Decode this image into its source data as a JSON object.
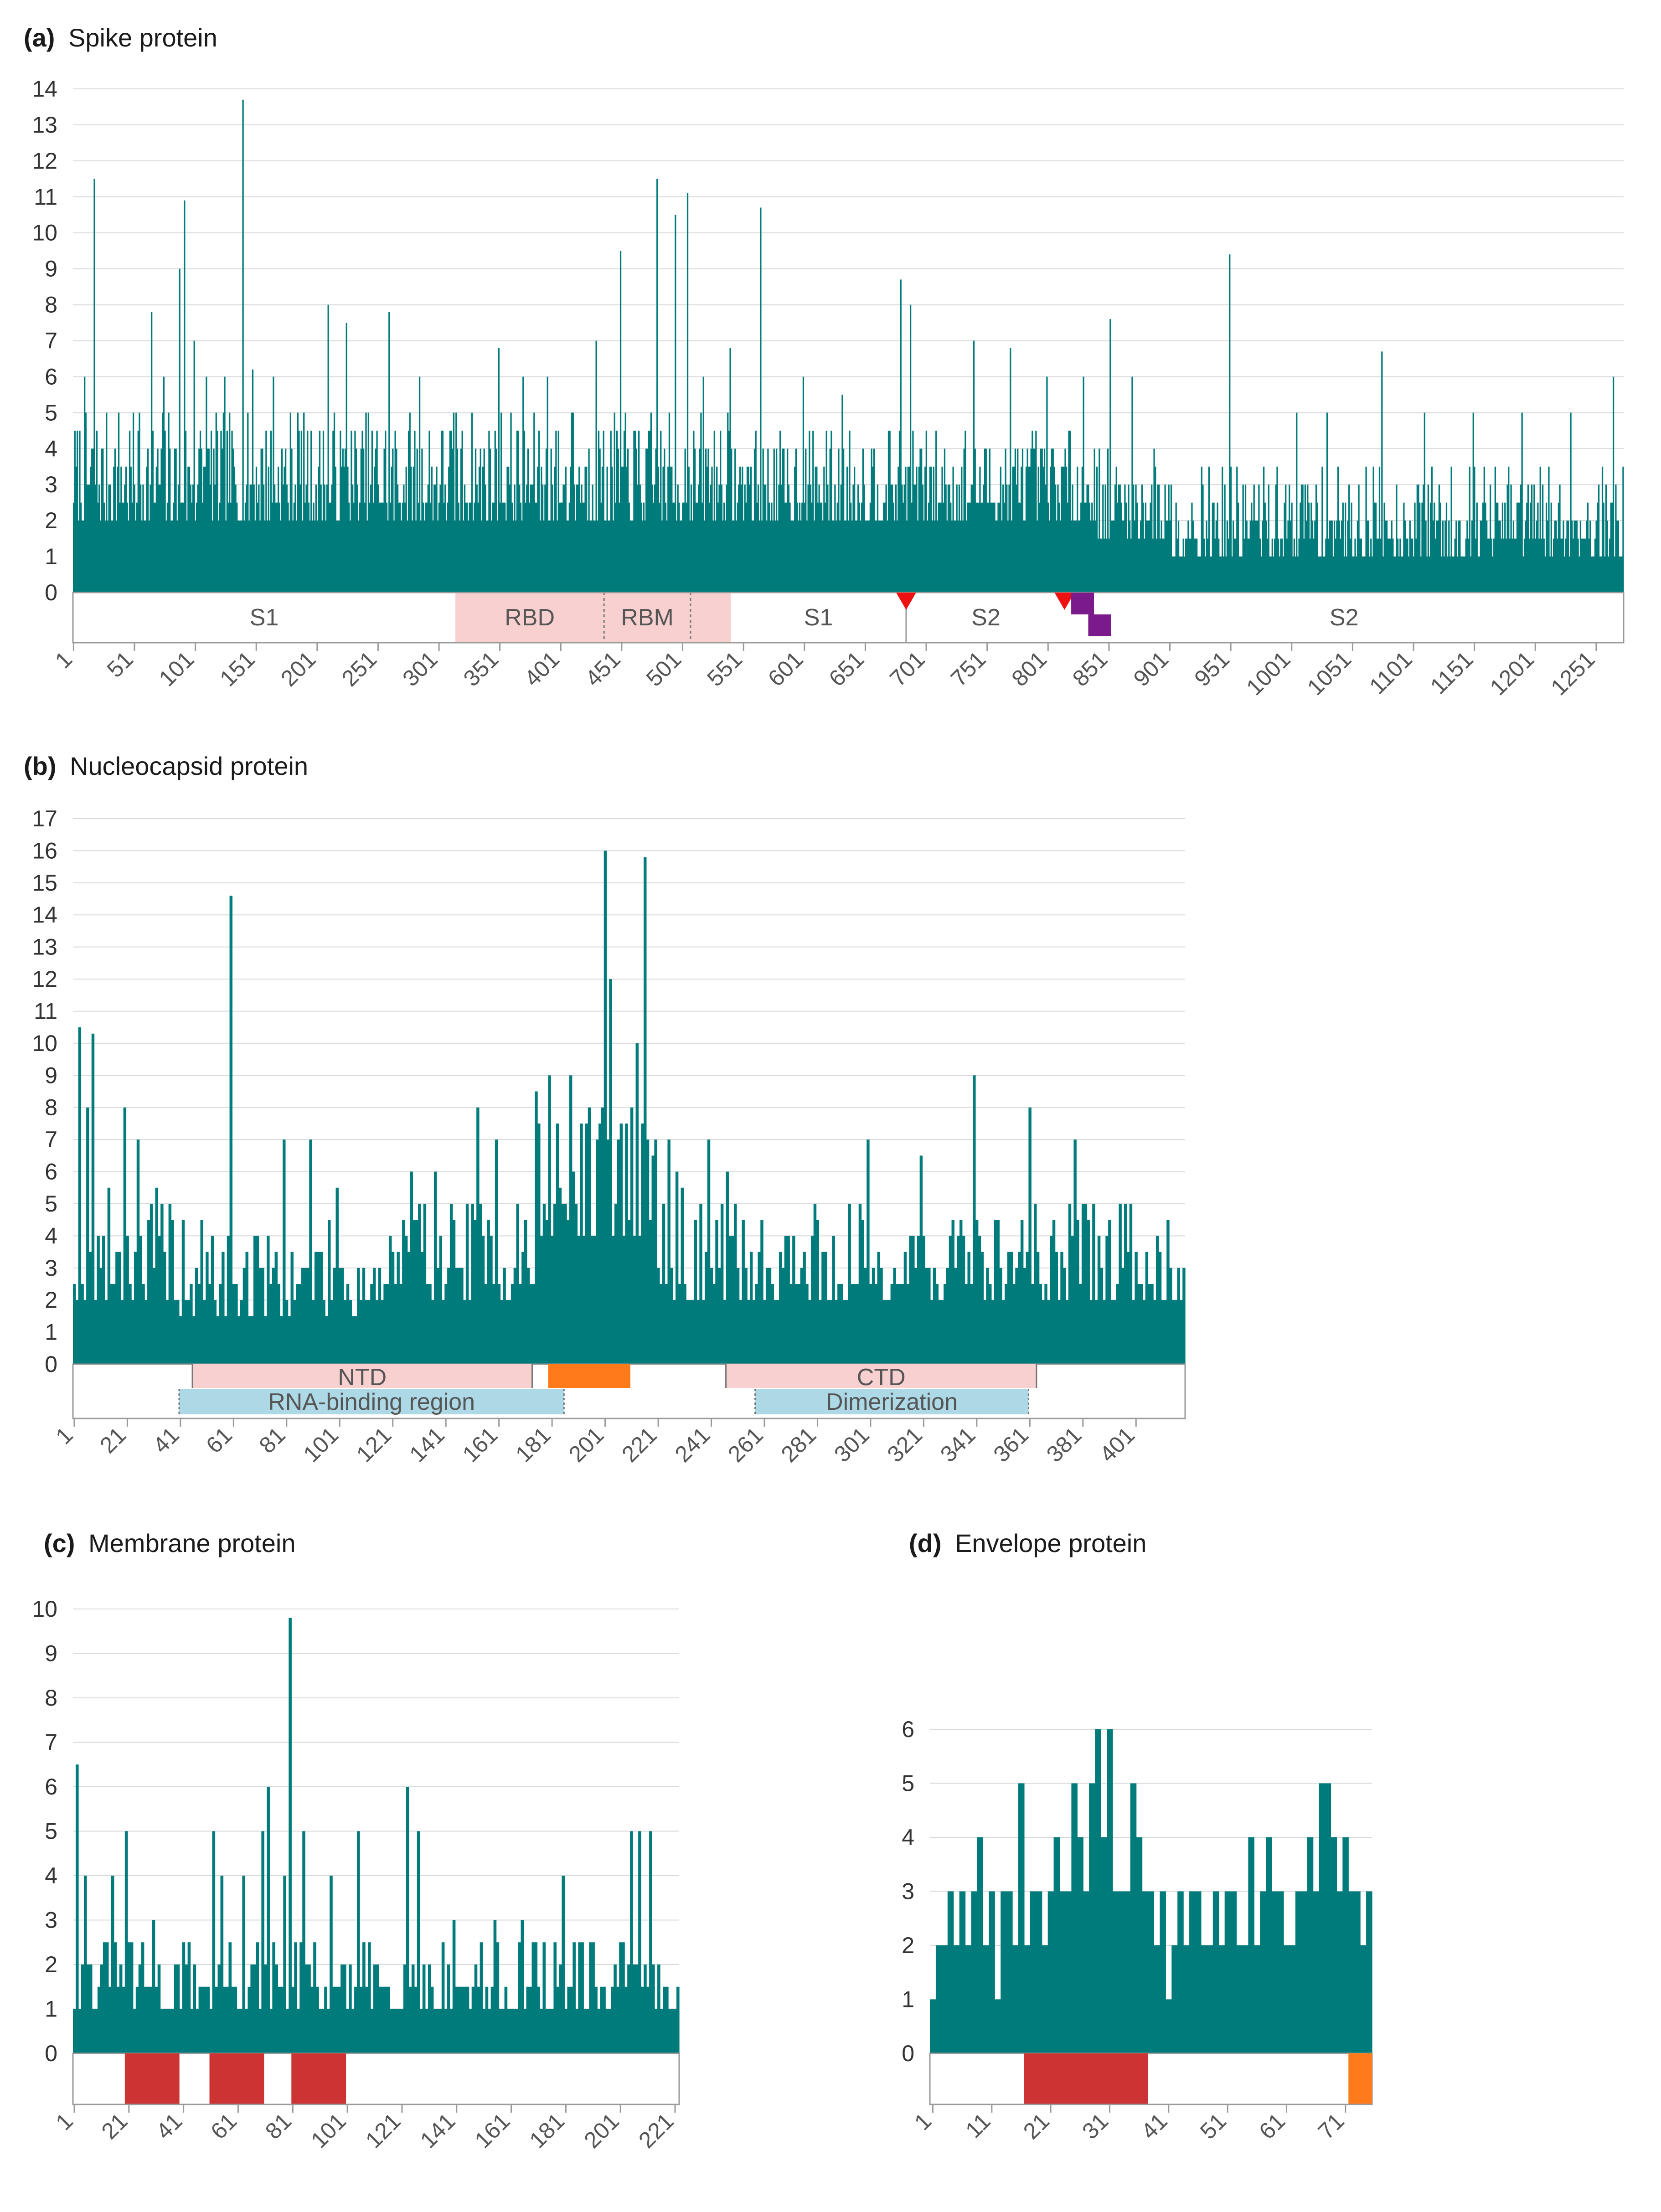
{
  "colors": {
    "bar": "#007b7b",
    "rbd": "#f8d0d0",
    "ntd": "#f8d0d0",
    "rna": "#add8e6",
    "orange": "#ff7a1a",
    "tm": "#cc3333",
    "red_marker": "#ee1111",
    "purple_marker": "#7b1a8a"
  },
  "chart_data": [
    {
      "panel": "a",
      "type": "bar",
      "title_letter": "(a)",
      "title": "Spike protein",
      "xlabel": "",
      "ylabel": "",
      "ylim": [
        0,
        14
      ],
      "y_ticks": [
        0,
        1,
        2,
        3,
        4,
        5,
        6,
        7,
        8,
        9,
        10,
        11,
        12,
        13,
        14
      ],
      "x_range": [
        1,
        1273
      ],
      "x_ticks": [
        1,
        51,
        101,
        151,
        201,
        251,
        301,
        351,
        401,
        451,
        501,
        551,
        601,
        651,
        701,
        751,
        801,
        851,
        901,
        951,
        1001,
        1051,
        1101,
        1151,
        1201,
        1251
      ],
      "baseline_band": [
        0,
        2
      ],
      "noise_ranges": [
        [
          1,
          320,
          2,
          5
        ],
        [
          320,
          540,
          2,
          5
        ],
        [
          540,
          840,
          2,
          4.5
        ],
        [
          840,
          900,
          1.5,
          4
        ],
        [
          900,
          1273,
          1,
          3.5
        ]
      ],
      "peaks": [
        [
          10,
          6
        ],
        [
          18,
          11.5
        ],
        [
          38,
          5
        ],
        [
          55,
          5
        ],
        [
          65,
          7.8
        ],
        [
          75,
          6
        ],
        [
          88,
          9
        ],
        [
          92,
          10.9
        ],
        [
          100,
          7
        ],
        [
          110,
          6
        ],
        [
          125,
          6
        ],
        [
          140,
          13.7
        ],
        [
          148,
          6.2
        ],
        [
          165,
          6
        ],
        [
          185,
          5
        ],
        [
          210,
          8
        ],
        [
          225,
          7.5
        ],
        [
          260,
          7.8
        ],
        [
          285,
          6
        ],
        [
          315,
          5
        ],
        [
          350,
          6.8
        ],
        [
          370,
          6
        ],
        [
          390,
          6
        ],
        [
          410,
          5
        ],
        [
          430,
          7
        ],
        [
          450,
          9.5
        ],
        [
          480,
          11.5
        ],
        [
          495,
          10.5
        ],
        [
          505,
          11.1
        ],
        [
          518,
          6
        ],
        [
          540,
          6.8
        ],
        [
          565,
          10.7
        ],
        [
          600,
          6
        ],
        [
          632,
          5.5
        ],
        [
          680,
          8.7
        ],
        [
          688,
          8
        ],
        [
          740,
          7
        ],
        [
          770,
          6.8
        ],
        [
          800,
          6
        ],
        [
          830,
          6
        ],
        [
          852,
          7.6
        ],
        [
          870,
          6
        ],
        [
          950,
          9.4
        ],
        [
          1005,
          5
        ],
        [
          1030,
          5
        ],
        [
          1075,
          6.7
        ],
        [
          1110,
          5
        ],
        [
          1150,
          5
        ],
        [
          1190,
          5
        ],
        [
          1230,
          5
        ],
        [
          1265,
          6
        ]
      ],
      "domains": [
        {
          "label": "S1",
          "from": 1,
          "to": 315,
          "fill": "none"
        },
        {
          "label": "RBD",
          "from": 315,
          "to": 437,
          "fill": "pink"
        },
        {
          "label": "RBM",
          "from": 437,
          "to": 508,
          "fill": "pink",
          "divider": 508
        },
        {
          "label": "",
          "from": 508,
          "to": 541,
          "fill": "pink"
        },
        {
          "label": "S1",
          "from": 541,
          "to": 685,
          "fill": "none"
        },
        {
          "label": "S2",
          "from": 685,
          "to": 816,
          "fill": "none"
        },
        {
          "label": "S2",
          "from": 816,
          "to": 1273,
          "fill": "none"
        }
      ],
      "markers": [
        {
          "kind": "red-triangle",
          "pos": 685
        },
        {
          "kind": "red-triangle",
          "pos": 815
        },
        {
          "kind": "purple-square",
          "pos": 822,
          "row": 1
        },
        {
          "kind": "purple-square",
          "pos": 836,
          "row": 2
        }
      ]
    },
    {
      "panel": "b",
      "type": "bar",
      "title_letter": "(b)",
      "title": "Nucleocapsid protein",
      "xlabel": "",
      "ylabel": "",
      "ylim": [
        0,
        17
      ],
      "y_ticks": [
        0,
        1,
        2,
        3,
        4,
        5,
        6,
        7,
        8,
        9,
        10,
        11,
        12,
        13,
        14,
        15,
        16,
        17
      ],
      "x_range": [
        1,
        419
      ],
      "x_ticks": [
        1,
        21,
        41,
        61,
        81,
        101,
        121,
        141,
        161,
        181,
        201,
        221,
        241,
        261,
        281,
        301,
        321,
        341,
        361,
        381,
        401
      ],
      "noise_ranges": [
        [
          1,
          40,
          2,
          5.5
        ],
        [
          40,
          120,
          1.5,
          4.5
        ],
        [
          120,
          175,
          2,
          5.5
        ],
        [
          175,
          220,
          4,
          8
        ],
        [
          220,
          250,
          2,
          6
        ],
        [
          250,
          419,
          2,
          5
        ]
      ],
      "peaks": [
        [
          3,
          10.5
        ],
        [
          8,
          10.3
        ],
        [
          6,
          8
        ],
        [
          20,
          8
        ],
        [
          25,
          7
        ],
        [
          60,
          14.6
        ],
        [
          80,
          7
        ],
        [
          90,
          7
        ],
        [
          100,
          5.5
        ],
        [
          128,
          6
        ],
        [
          137,
          6
        ],
        [
          153,
          8
        ],
        [
          160,
          7
        ],
        [
          175,
          8.5
        ],
        [
          180,
          9
        ],
        [
          188,
          9
        ],
        [
          195,
          8
        ],
        [
          201,
          16
        ],
        [
          203,
          12
        ],
        [
          207,
          7.5
        ],
        [
          213,
          10
        ],
        [
          216,
          15.8
        ],
        [
          220,
          7
        ],
        [
          225,
          7
        ],
        [
          240,
          7
        ],
        [
          300,
          7
        ],
        [
          320,
          6.5
        ],
        [
          340,
          9
        ],
        [
          361,
          8
        ],
        [
          378,
          7
        ],
        [
          395,
          5
        ]
      ],
      "domains_top": [
        {
          "label": "NTD",
          "from": 46,
          "to": 174,
          "fill": "pink"
        },
        {
          "label": "",
          "from": 180,
          "to": 211,
          "fill": "orange"
        },
        {
          "label": "CTD",
          "from": 247,
          "to": 364,
          "fill": "pink"
        }
      ],
      "domains_bottom": [
        {
          "label": "RNA-binding region",
          "from": 41,
          "to": 186,
          "fill": "blue"
        },
        {
          "label": "Dimerization",
          "from": 258,
          "to": 361,
          "fill": "blue"
        }
      ]
    },
    {
      "panel": "c",
      "type": "bar",
      "title_letter": "(c)",
      "title": "Membrane protein",
      "xlabel": "",
      "ylabel": "",
      "ylim": [
        0,
        10
      ],
      "y_ticks": [
        0,
        1,
        2,
        3,
        4,
        5,
        6,
        7,
        8,
        9,
        10
      ],
      "x_range": [
        1,
        222
      ],
      "x_ticks": [
        1,
        21,
        41,
        61,
        81,
        101,
        121,
        141,
        161,
        181,
        201,
        221
      ],
      "noise_ranges": [
        [
          1,
          222,
          1,
          2.5
        ]
      ],
      "peaks": [
        [
          2,
          6.5
        ],
        [
          5,
          4
        ],
        [
          15,
          4
        ],
        [
          20,
          5
        ],
        [
          30,
          3
        ],
        [
          52,
          5
        ],
        [
          55,
          4
        ],
        [
          63,
          4
        ],
        [
          70,
          5
        ],
        [
          72,
          6
        ],
        [
          78,
          4
        ],
        [
          80,
          9.8
        ],
        [
          85,
          5
        ],
        [
          95,
          4
        ],
        [
          105,
          5
        ],
        [
          123,
          6
        ],
        [
          127,
          5
        ],
        [
          140,
          3
        ],
        [
          155,
          3
        ],
        [
          165,
          3
        ],
        [
          180,
          4
        ],
        [
          205,
          5
        ],
        [
          208,
          5
        ],
        [
          212,
          5
        ],
        [
          215,
          2
        ]
      ],
      "domains": [
        {
          "label": "",
          "from": 20,
          "to": 40,
          "fill": "red"
        },
        {
          "label": "",
          "from": 51,
          "to": 71,
          "fill": "red"
        },
        {
          "label": "",
          "from": 81,
          "to": 101,
          "fill": "red"
        }
      ]
    },
    {
      "panel": "d",
      "type": "bar",
      "title_letter": "(d)",
      "title": "Envelope protein",
      "xlabel": "",
      "ylabel": "",
      "ylim": [
        0,
        6
      ],
      "y_ticks": [
        0,
        1,
        2,
        3,
        4,
        5,
        6
      ],
      "x_range": [
        1,
        75
      ],
      "x_ticks": [
        1,
        11,
        21,
        31,
        41,
        51,
        61,
        71
      ],
      "values": [
        1,
        2,
        2,
        3,
        2,
        3,
        2,
        3,
        4,
        2,
        3,
        1,
        3,
        3,
        2,
        5,
        2,
        3,
        3,
        2,
        3,
        4,
        3,
        3,
        5,
        4,
        3,
        5,
        6,
        4,
        6,
        3,
        3,
        3,
        5,
        4,
        3,
        3,
        2,
        3,
        1,
        2,
        3,
        2,
        3,
        3,
        2,
        2,
        3,
        2,
        3,
        3,
        2,
        2,
        4,
        2,
        3,
        4,
        3,
        3,
        2,
        2,
        3,
        3,
        4,
        3,
        5,
        5,
        4,
        3,
        4,
        3,
        3,
        2,
        3
      ]
    }
  ]
}
